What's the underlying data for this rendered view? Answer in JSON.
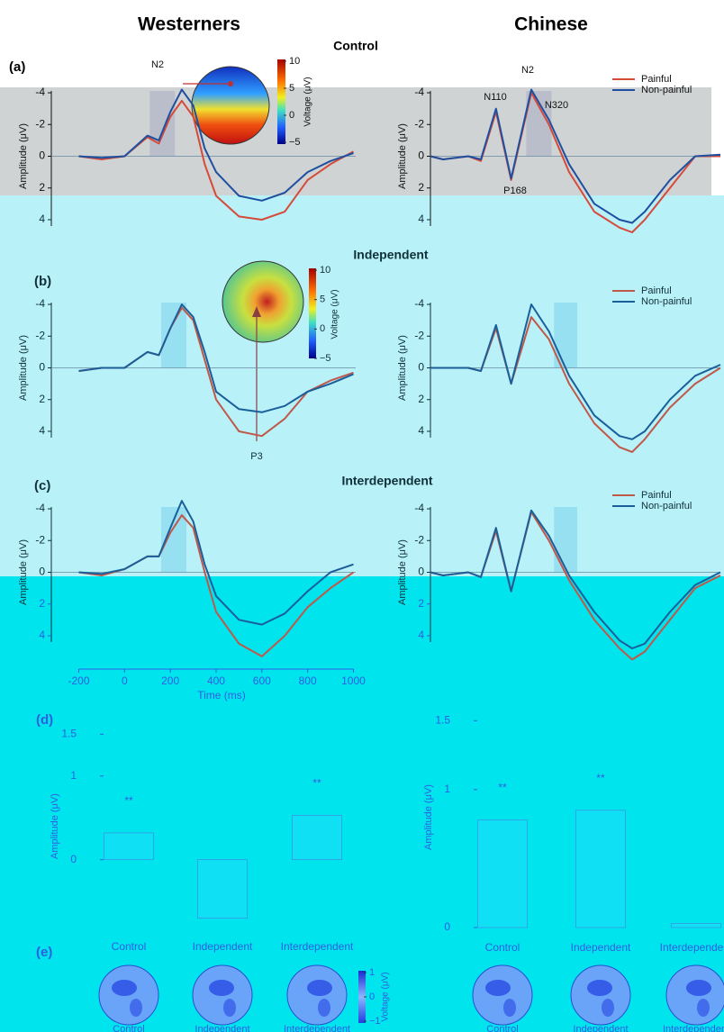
{
  "figure": {
    "columns": [
      "Westerners",
      "Chinese"
    ],
    "panel_labels": [
      "(a)",
      "(b)",
      "(c)",
      "(d)",
      "(e)"
    ],
    "conditions": [
      "Control",
      "Independent",
      "Interdependent"
    ],
    "inset_colorbar": {
      "label": "Voltage (μV)",
      "ticks": [
        10,
        5,
        0,
        {
          "value": -5,
          "label": "−5"
        }
      ]
    },
    "topo_colorbar": {
      "label": "Voltage (μV)",
      "ticks": [
        1,
        0,
        {
          "value": -1,
          "label": "−1"
        }
      ]
    }
  },
  "chart_data": [
    {
      "type": "line",
      "y_label": "Amplitude (μV)",
      "annotations": [
        "N2"
      ],
      "x": [
        -200,
        -100,
        0,
        100,
        150,
        200,
        250,
        300,
        350,
        400,
        500,
        600,
        700,
        800,
        900,
        1000
      ],
      "xlim": [
        -320,
        1010
      ],
      "ylim": [
        4.4,
        -4.4
      ],
      "yticks": [
        -4,
        -2,
        0,
        2,
        4
      ],
      "window": [
        110,
        220
      ],
      "series": [
        {
          "name": "Painful",
          "color": "#d64a3a",
          "values": [
            0,
            0.2,
            0,
            -1.2,
            -0.8,
            -2.5,
            -3.5,
            -2.5,
            0.5,
            2.5,
            3.8,
            4.0,
            3.5,
            1.5,
            0.5,
            -0.3
          ]
        },
        {
          "name": "Non-painful",
          "color": "#1f4fa0",
          "values": [
            0,
            0.1,
            0,
            -1.3,
            -1,
            -2.8,
            -4.2,
            -3.2,
            -0.5,
            1,
            2.5,
            2.8,
            2.3,
            1,
            0.3,
            -0.2
          ]
        }
      ]
    },
    {
      "type": "line",
      "y_label": "Amplitude (μV)",
      "legend": true,
      "annotations": [
        "N110",
        "P168",
        "N2",
        "N320"
      ],
      "x": [
        -150,
        -100,
        0,
        50,
        110,
        170,
        250,
        320,
        400,
        500,
        600,
        650,
        700,
        800,
        900,
        1000
      ],
      "xlim": [
        -150,
        1000
      ],
      "ylim": [
        4.4,
        -4.4
      ],
      "yticks": [
        -4,
        -2,
        0,
        2,
        4
      ],
      "window": [
        230,
        330
      ],
      "series": [
        {
          "name": "Painful",
          "color": "#d64a3a",
          "values": [
            0,
            0.2,
            0,
            0.3,
            -2.8,
            1.5,
            -4,
            -2,
            1,
            3.5,
            4.5,
            4.8,
            4,
            2,
            0,
            0
          ]
        },
        {
          "name": "Non-painful",
          "color": "#1f4fa0",
          "values": [
            0,
            0.2,
            0,
            0.2,
            -3,
            1.4,
            -4.2,
            -2.3,
            0.5,
            3,
            4,
            4.2,
            3.5,
            1.5,
            0,
            -0.1
          ]
        }
      ]
    },
    {
      "type": "line",
      "y_label": "Amplitude (μV)",
      "annotations": [
        "P3"
      ],
      "x": [
        -200,
        -100,
        0,
        100,
        150,
        200,
        250,
        300,
        350,
        400,
        500,
        600,
        700,
        800,
        900,
        1000
      ],
      "xlim": [
        -320,
        1010
      ],
      "ylim": [
        4.4,
        -4.4
      ],
      "yticks": [
        -4,
        -2,
        0,
        2,
        4
      ],
      "window": [
        160,
        270
      ],
      "series": [
        {
          "name": "Painful",
          "color": "#c0584a",
          "values": [
            0.2,
            0,
            0,
            -1,
            -0.8,
            -2.5,
            -3.8,
            -3,
            -0.5,
            2,
            4,
            4.3,
            3.2,
            1.5,
            0.8,
            0.3
          ]
        },
        {
          "name": "Non-painful",
          "color": "#1a5f9a",
          "values": [
            0.2,
            0,
            0,
            -1,
            -0.8,
            -2.5,
            -4,
            -3.2,
            -1,
            1.5,
            2.6,
            2.8,
            2.4,
            1.5,
            1,
            0.4
          ]
        }
      ]
    },
    {
      "type": "line",
      "y_label": "Amplitude (μV)",
      "legend": true,
      "x": [
        -150,
        -100,
        0,
        50,
        110,
        170,
        250,
        320,
        400,
        500,
        600,
        650,
        700,
        800,
        900,
        1000
      ],
      "xlim": [
        -150,
        1000
      ],
      "ylim": [
        4.4,
        -4.4
      ],
      "yticks": [
        -4,
        -2,
        0,
        2,
        4
      ],
      "window": [
        340,
        432
      ],
      "series": [
        {
          "name": "Painful",
          "color": "#c0584a",
          "values": [
            0,
            0,
            0,
            0.2,
            -2.5,
            1,
            -3.2,
            -1.8,
            1,
            3.5,
            5,
            5.3,
            4.5,
            2.5,
            1,
            0
          ]
        },
        {
          "name": "Non-painful",
          "color": "#1a5f9a",
          "values": [
            0,
            0,
            0,
            0.2,
            -2.7,
            1,
            -4,
            -2.3,
            0.5,
            3,
            4.3,
            4.5,
            4,
            2,
            0.5,
            -0.2
          ]
        }
      ]
    },
    {
      "type": "line",
      "y_label": "Amplitude (μV)",
      "x_label": "Time (ms)",
      "x": [
        -200,
        -100,
        0,
        100,
        150,
        200,
        250,
        300,
        350,
        400,
        500,
        600,
        700,
        800,
        900,
        1000
      ],
      "xlim": [
        -320,
        1010
      ],
      "xticks": [
        -200,
        0,
        200,
        400,
        600,
        800,
        1000
      ],
      "ylim": [
        4.4,
        -4.4
      ],
      "yticks": [
        -4,
        -2,
        0,
        2,
        4
      ],
      "window": [
        160,
        270
      ],
      "series": [
        {
          "name": "Painful",
          "color": "#c0584a",
          "values": [
            0,
            0.2,
            -0.2,
            -1,
            -1,
            -2.5,
            -3.6,
            -2.8,
            0,
            2.5,
            4.5,
            5.3,
            4,
            2.2,
            1,
            0
          ]
        },
        {
          "name": "Non-painful",
          "color": "#1a5f9a",
          "values": [
            0,
            0.1,
            -0.2,
            -1,
            -1,
            -2.8,
            -4.5,
            -3.2,
            -0.5,
            1.5,
            3,
            3.3,
            2.6,
            1.2,
            0,
            -0.5
          ]
        }
      ]
    },
    {
      "type": "line",
      "y_label": "Amplitude (μV)",
      "legend": true,
      "x": [
        -150,
        -100,
        0,
        50,
        110,
        170,
        250,
        320,
        400,
        500,
        600,
        650,
        700,
        800,
        900,
        1000
      ],
      "xlim": [
        -150,
        1000
      ],
      "ylim": [
        4.4,
        -4.4
      ],
      "yticks": [
        -4,
        -2,
        0,
        2,
        4
      ],
      "window": [
        340,
        432
      ],
      "series": [
        {
          "name": "Painful",
          "color": "#c0584a",
          "values": [
            0,
            0.2,
            0,
            0.3,
            -2.6,
            1.2,
            -3.8,
            -2,
            0.5,
            3,
            4.8,
            5.5,
            5,
            3,
            1,
            0.2
          ]
        },
        {
          "name": "Non-painful",
          "color": "#1a5f9a",
          "values": [
            0,
            0.2,
            0,
            0.3,
            -2.8,
            1.2,
            -3.9,
            -2.3,
            0.2,
            2.5,
            4.3,
            4.8,
            4.5,
            2.5,
            0.8,
            0
          ]
        }
      ]
    },
    {
      "type": "bar",
      "y_label": "Amplitude (μV)",
      "categories": [
        "Control",
        "Independent",
        "Interdependent"
      ],
      "values": [
        0.32,
        -0.7,
        0.53
      ],
      "value_annotations": [
        "**",
        null,
        "**"
      ],
      "color": "#4a7ee0",
      "ylim": [
        -0.8,
        1.6
      ],
      "yticks": [
        0,
        1,
        1.5
      ]
    },
    {
      "type": "bar",
      "y_label": "Amplitude (μV)",
      "categories": [
        "Control",
        "Independent",
        "Interdependent"
      ],
      "values": [
        0.78,
        0.85,
        0.03
      ],
      "value_annotations": [
        "**",
        "**",
        null
      ],
      "color": "#4a7ee0",
      "ylim": [
        0,
        1.6
      ],
      "yticks": [
        0,
        1,
        1.5
      ]
    }
  ]
}
